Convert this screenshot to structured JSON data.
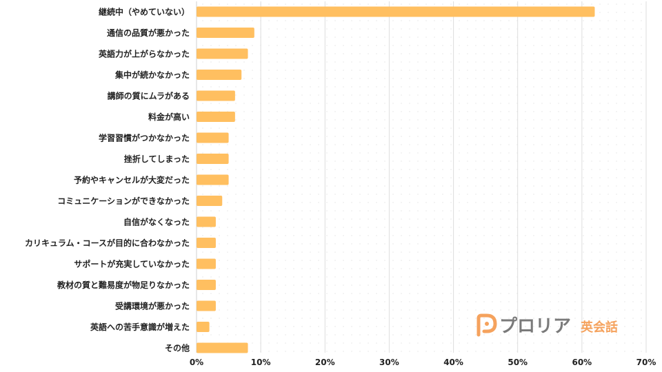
{
  "chart_data": {
    "type": "bar",
    "orientation": "horizontal",
    "categories": [
      "継続中（やめていない）",
      "通信の品質が悪かった",
      "英語力が上がらなかった",
      "集中が続かなかった",
      "講師の質にムラがある",
      "料金が高い",
      "学習習慣がつかなかった",
      "挫折してしまった",
      "予約やキャンセルが大変だった",
      "コミュニケーションができなかった",
      "自信がなくなった",
      "カリキュラム・コースが目的に合わなかった",
      "サポートが充実していなかった",
      "教材の質と難易度が物足りなかった",
      "受講環境が悪かった",
      "英語への苦手意識が増えた",
      "その他"
    ],
    "values": [
      62,
      9,
      8,
      7,
      6,
      6,
      5,
      5,
      5,
      4,
      3,
      3,
      3,
      3,
      3,
      2,
      8
    ],
    "xlim": [
      0,
      70
    ],
    "x_ticks": [
      0,
      10,
      20,
      30,
      40,
      50,
      60,
      70
    ],
    "x_tick_labels": [
      "0%",
      "10%",
      "20%",
      "30%",
      "40%",
      "50%",
      "60%",
      "70%"
    ],
    "grid": true,
    "bar_color": "#ffbf60",
    "title": "",
    "xlabel": "",
    "ylabel": ""
  },
  "logo": {
    "name": "プロリア",
    "suffix": "英会話",
    "color_main": "#7a7a7a",
    "color_accent": "#f5a25d"
  }
}
